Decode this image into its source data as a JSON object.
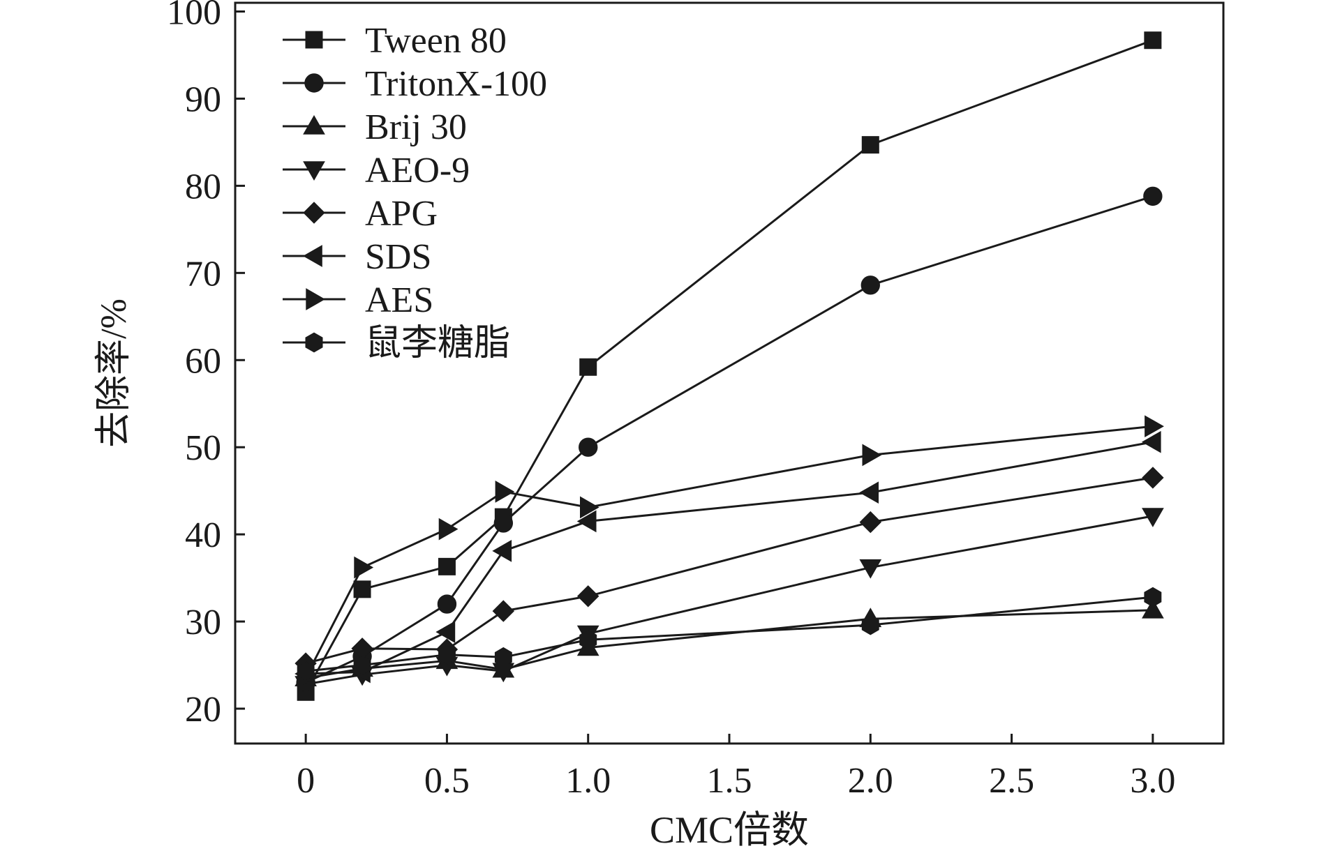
{
  "chart_data": {
    "type": "line",
    "xlabel": "CMC倍数",
    "ylabel": "去除率/%",
    "xlim": [
      -0.25,
      3.25
    ],
    "ylim": [
      16,
      101
    ],
    "x_ticks": [
      0,
      0.5,
      1.0,
      1.5,
      2.0,
      2.5,
      3.0
    ],
    "x_tick_labels": [
      "0",
      "0.5",
      "1.0",
      "1.5",
      "2.0",
      "2.5",
      "3.0"
    ],
    "y_ticks": [
      20,
      30,
      40,
      50,
      60,
      70,
      80,
      90,
      100
    ],
    "y_tick_labels": [
      "20",
      "30",
      "40",
      "50",
      "60",
      "70",
      "80",
      "90",
      "100"
    ],
    "legend_position": "top-left",
    "grid": false,
    "x": [
      0,
      0.2,
      0.5,
      0.7,
      1.0,
      2.0,
      3.0
    ],
    "series": [
      {
        "name": "Tween 80",
        "marker": "square",
        "values": [
          21.9,
          33.7,
          36.3,
          42.0,
          59.2,
          84.7,
          96.7
        ]
      },
      {
        "name": "TritonX-100",
        "marker": "circle",
        "values": [
          23.0,
          26.0,
          32.0,
          41.3,
          50.0,
          68.6,
          78.8
        ]
      },
      {
        "name": "Brij 30",
        "marker": "triangle-up",
        "values": [
          23.5,
          24.6,
          25.5,
          24.5,
          27.0,
          30.3,
          31.3
        ]
      },
      {
        "name": "AEO-9",
        "marker": "triangle-down",
        "values": [
          22.8,
          23.9,
          25.0,
          24.3,
          28.6,
          36.2,
          42.1
        ]
      },
      {
        "name": "APG",
        "marker": "diamond",
        "values": [
          25.2,
          26.9,
          26.8,
          31.2,
          32.9,
          41.4,
          46.5
        ]
      },
      {
        "name": "SDS",
        "marker": "triangle-left",
        "values": [
          24.0,
          24.2,
          28.8,
          38.1,
          41.5,
          44.8,
          50.6
        ]
      },
      {
        "name": "AES",
        "marker": "triangle-right",
        "values": [
          23.6,
          36.2,
          40.6,
          44.9,
          43.1,
          49.1,
          52.4
        ]
      },
      {
        "name": "鼠李糖脂",
        "marker": "hexagon",
        "values": [
          24.3,
          25.0,
          26.2,
          25.9,
          27.9,
          29.6,
          32.8
        ]
      }
    ]
  }
}
